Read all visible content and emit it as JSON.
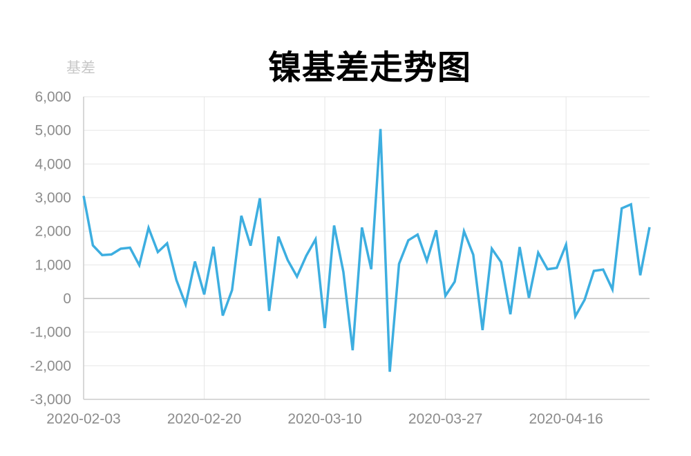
{
  "chart_data": {
    "type": "line",
    "title": "镍基差走势图",
    "ylabel": "基差",
    "xlabel": "",
    "ylim": [
      -3000,
      6000
    ],
    "y_ticks": [
      6000,
      5000,
      4000,
      3000,
      2000,
      1000,
      0,
      -1000,
      -2000,
      -3000
    ],
    "y_tick_labels": [
      "6,000",
      "5,000",
      "4,000",
      "3,000",
      "2,000",
      "1,000",
      "0",
      "-1,000",
      "-2,000",
      "-3,000"
    ],
    "x_tick_labels": [
      "2020-02-03",
      "2020-02-20",
      "2020-03-10",
      "2020-03-27",
      "2020-04-16"
    ],
    "x_tick_indices": [
      0,
      13,
      26,
      39,
      52
    ],
    "grid": true,
    "series": [
      {
        "color": "#3daee0",
        "values": [
          3050,
          1580,
          1290,
          1310,
          1480,
          1510,
          990,
          2100,
          1380,
          1640,
          550,
          -180,
          1100,
          120,
          1540,
          -510,
          250,
          2460,
          1570,
          2980,
          -370,
          1840,
          1140,
          650,
          1270,
          1760,
          -880,
          2170,
          790,
          -1540,
          2110,
          870,
          5040,
          -2180,
          1030,
          1730,
          1900,
          1120,
          2030,
          80,
          500,
          2000,
          1300,
          -940,
          1480,
          1080,
          -470,
          1530,
          20,
          1360,
          870,
          910,
          1600,
          -530,
          -40,
          820,
          860,
          270,
          2680,
          2800,
          690,
          2120
        ]
      }
    ]
  }
}
